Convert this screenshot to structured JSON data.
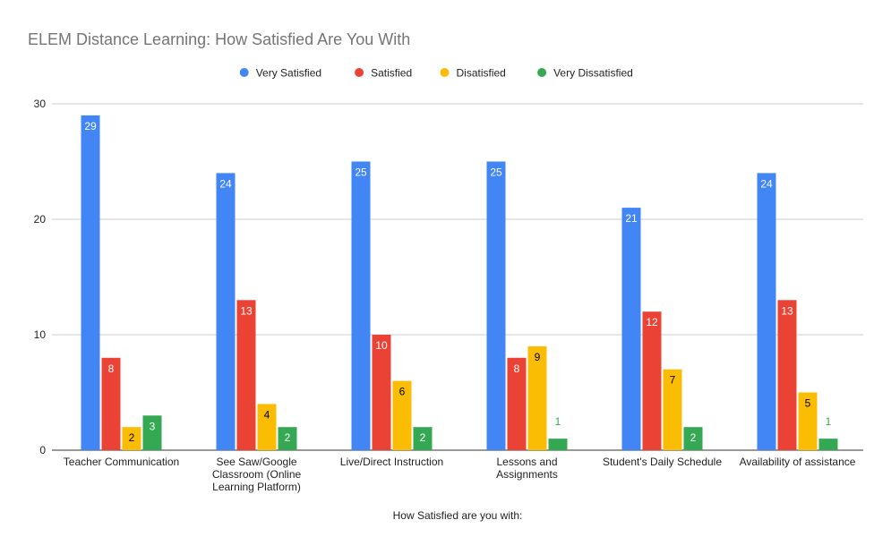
{
  "chart_data": {
    "type": "bar",
    "title": "ELEM Distance Learning: How Satisfied Are You With",
    "xlabel": "How Satisfied are you with:",
    "ylabel": "",
    "ylim": [
      0,
      30
    ],
    "yticks": [
      0,
      10,
      20,
      30
    ],
    "grid": true,
    "legend_position": "top",
    "categories": [
      [
        "Teacher Communication"
      ],
      [
        "See Saw/Google",
        "Classroom (Online",
        "Learning Platform)"
      ],
      [
        "Live/Direct Instruction"
      ],
      [
        "Lessons and",
        "Assignments"
      ],
      [
        "Student's Daily Schedule"
      ],
      [
        "Availability of assistance"
      ]
    ],
    "series": [
      {
        "name": "Very Satisfied",
        "color": "#4285f4",
        "label_color": "#ffffff",
        "values": [
          29,
          24,
          25,
          25,
          21,
          24
        ]
      },
      {
        "name": "Satisfied",
        "color": "#ea4335",
        "label_color": "#ffffff",
        "values": [
          8,
          13,
          10,
          8,
          12,
          13
        ]
      },
      {
        "name": "Disatisfied",
        "color": "#fbbc04",
        "label_color": "#000000",
        "values": [
          2,
          4,
          6,
          9,
          7,
          5
        ]
      },
      {
        "name": "Very Dissatisfied",
        "color": "#34a853",
        "label_color": "#ffffff",
        "values": [
          3,
          2,
          2,
          1,
          2,
          1
        ]
      }
    ]
  }
}
